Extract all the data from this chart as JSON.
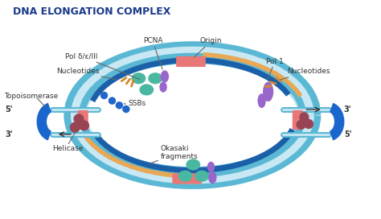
{
  "title": "DNA ELONGATION COMPLEX",
  "title_color": "#1a3a8a",
  "bg_color": "#ffffff",
  "labels": {
    "pcna": "PCNA",
    "origin": "Origin",
    "pol_delta": "Pol δ/ε/III",
    "nucleotides_left": "Nucleotides",
    "topoisomerase": "Topoisomerase",
    "ssbs": "SSBs",
    "five_prime_left": "5'",
    "three_prime_left": "3'",
    "helicase": "Helicase",
    "okasaki": "Okasaki\nfragments",
    "pol1": "Pol 1",
    "nucleotides_right": "Nucleotides",
    "three_prime_right": "3'",
    "five_prime_right": "5'"
  },
  "colors": {
    "outer_ring": "#5bb8d4",
    "outer_ring_light": "#c8e8f4",
    "inner_ring_dark": "#1a5fa8",
    "orange_strand": "#e8a855",
    "pink_patch": "#e87878",
    "teal_enzyme": "#4ab8a0",
    "purple_enzyme": "#9966cc",
    "blue_clamp": "#1a66cc",
    "blue_dots": "#2266cc",
    "dark_red_enzyme": "#994455",
    "text_color": "#333333",
    "line_color": "#666666"
  },
  "figsize": [
    4.74,
    2.72
  ],
  "dpi": 100
}
